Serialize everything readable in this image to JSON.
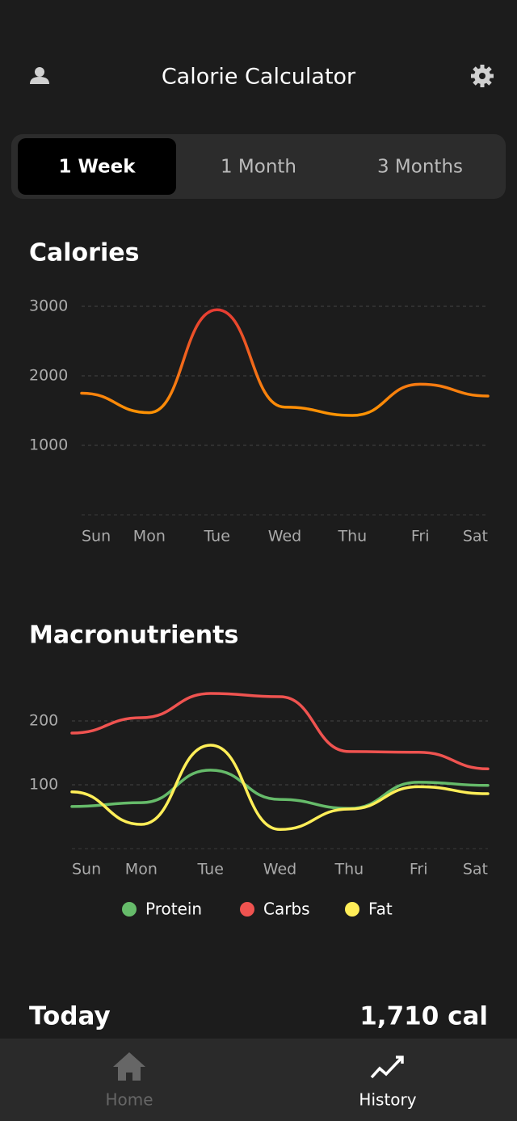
{
  "header": {
    "title": "Calorie Calculator"
  },
  "tabs": [
    "1 Week",
    "1 Month",
    "3 Months"
  ],
  "chart_data": [
    {
      "type": "line",
      "title": "Calories",
      "categories": [
        "Sun",
        "Mon",
        "Tue",
        "Wed",
        "Thu",
        "Fri",
        "Sat"
      ],
      "values": [
        1750,
        1470,
        2950,
        1550,
        1430,
        1880,
        1710
      ],
      "gradient": [
        "#e53935",
        "#ff9800"
      ],
      "ylim": [
        0,
        3000
      ],
      "yticks": [
        1000,
        2000,
        3000
      ],
      "grid": true
    },
    {
      "type": "line",
      "title": "Macronutrients",
      "categories": [
        "Sun",
        "Mon",
        "Tue",
        "Wed",
        "Thu",
        "Fri",
        "Sat"
      ],
      "series": [
        {
          "name": "Protein",
          "color": "#66bb6a",
          "values": [
            66,
            72,
            123,
            77,
            63,
            104,
            99
          ]
        },
        {
          "name": "Carbs",
          "color": "#ef5350",
          "values": [
            181,
            205,
            243,
            238,
            152,
            151,
            125
          ]
        },
        {
          "name": "Fat",
          "color": "#ffee58",
          "values": [
            89,
            38,
            162,
            30,
            62,
            97,
            86
          ]
        }
      ],
      "ylim": [
        0,
        250
      ],
      "yticks": [
        100,
        200
      ],
      "grid": true
    }
  ],
  "summary": {
    "label": "Today",
    "value": "1,710 cal"
  },
  "nav": [
    "Home",
    "History"
  ]
}
